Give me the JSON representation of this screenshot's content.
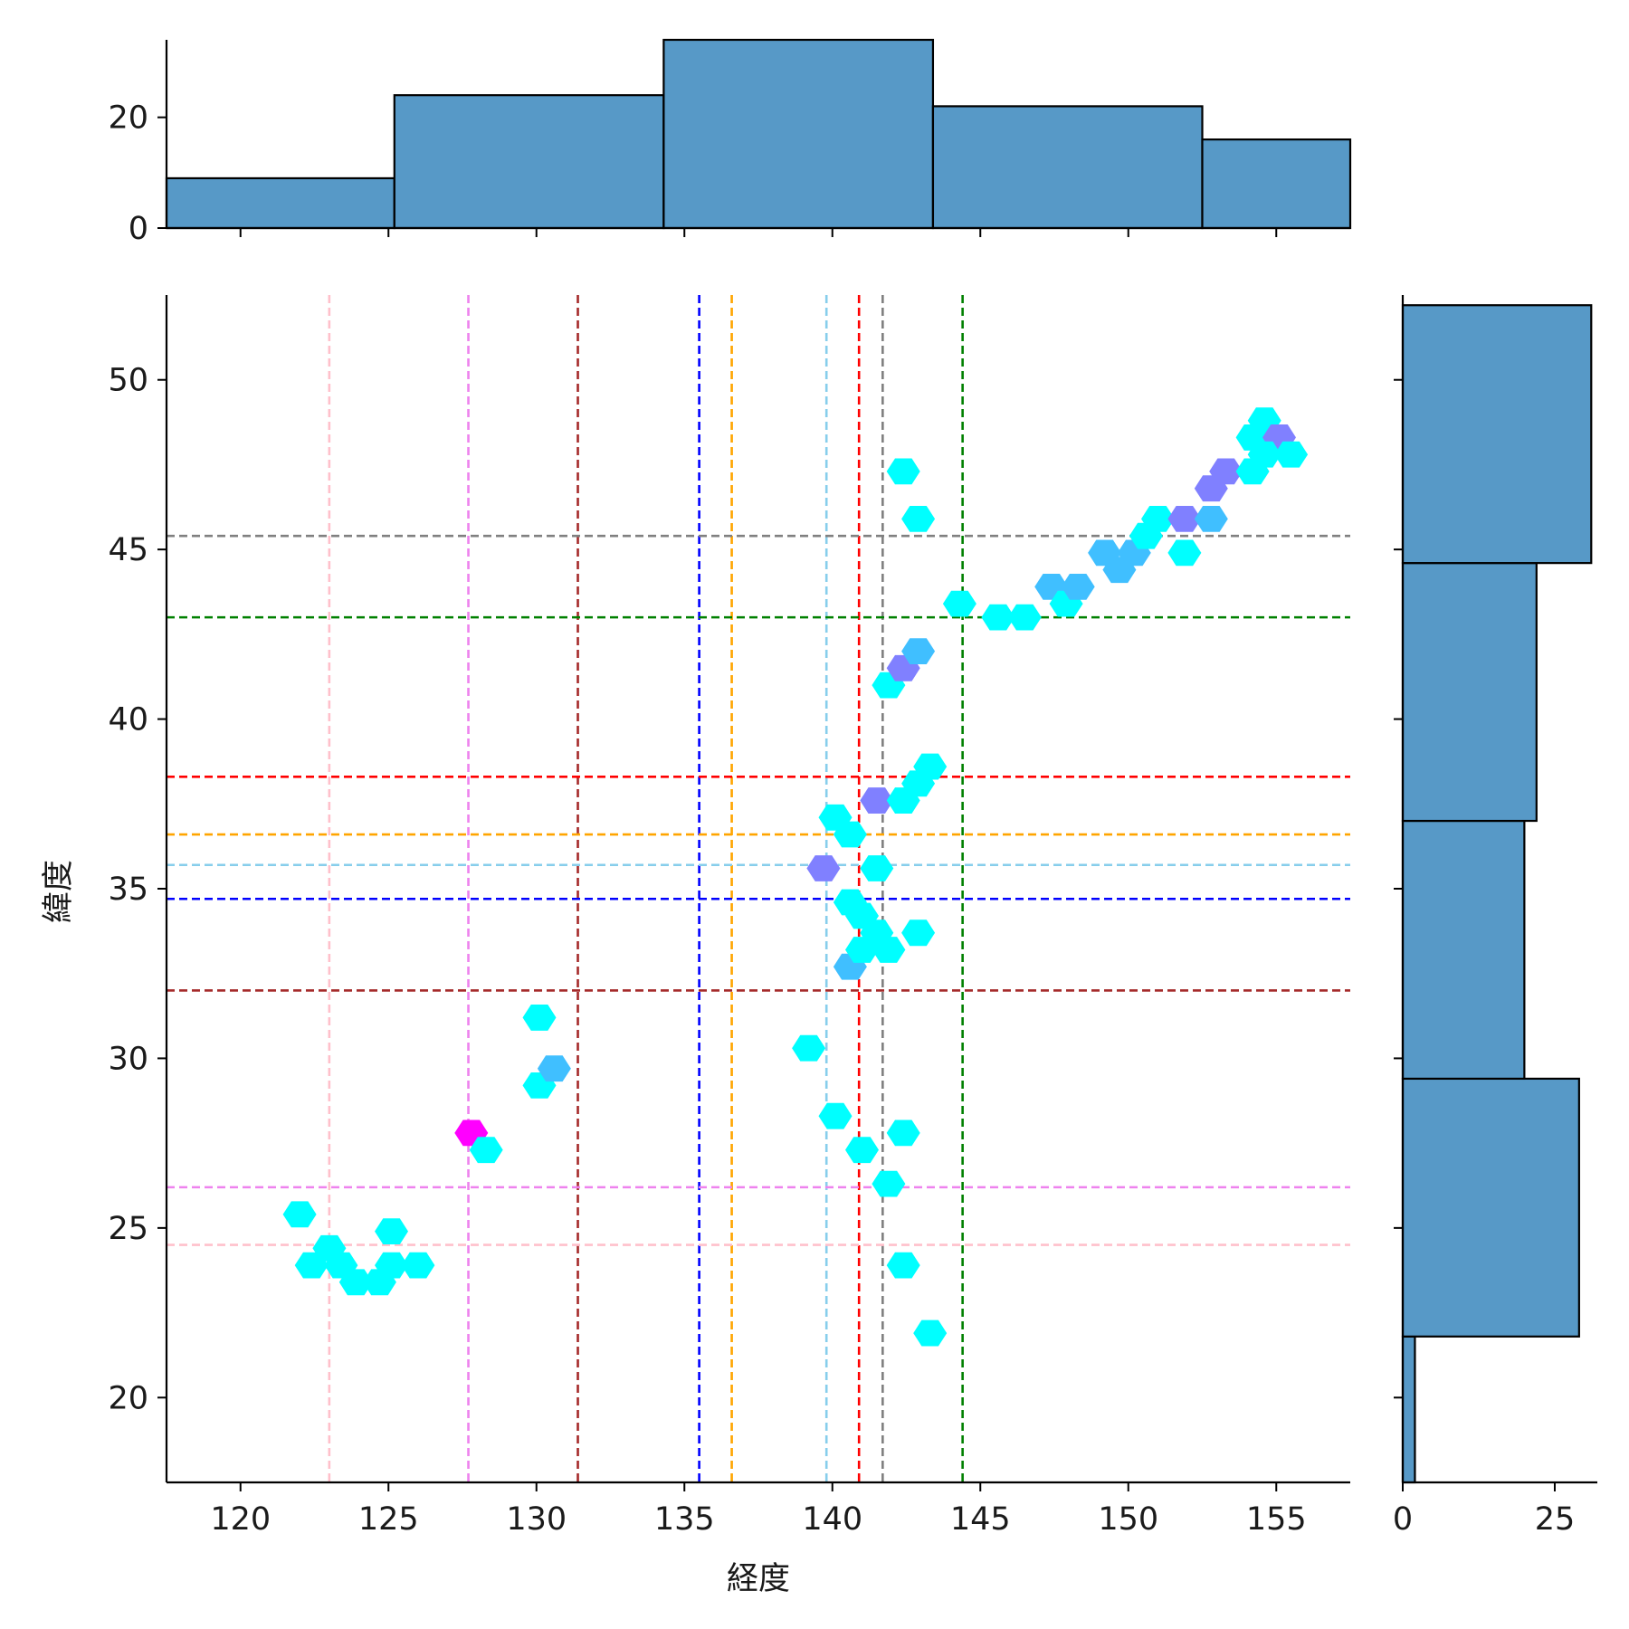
{
  "chart_data": {
    "type": "hexbin-joint",
    "xlabel": "経度",
    "ylabel": "緯度",
    "xlim": [
      117.5,
      157.5
    ],
    "ylim": [
      17.5,
      52.5
    ],
    "x_ticks": [
      "120",
      "125",
      "130",
      "135",
      "140",
      "145",
      "150",
      "155"
    ],
    "x_tick_values": [
      120,
      125,
      130,
      135,
      140,
      145,
      150,
      155
    ],
    "y_ticks": [
      "20",
      "25",
      "30",
      "35",
      "40",
      "45",
      "50"
    ],
    "y_tick_values": [
      20,
      25,
      30,
      35,
      40,
      45,
      50
    ],
    "hexbins": [
      {
        "x": 122.0,
        "y": 25.4,
        "count": 1
      },
      {
        "x": 122.4,
        "y": 23.9,
        "count": 1
      },
      {
        "x": 123.0,
        "y": 24.4,
        "count": 1
      },
      {
        "x": 123.4,
        "y": 23.9,
        "count": 1
      },
      {
        "x": 123.9,
        "y": 23.4,
        "count": 1
      },
      {
        "x": 124.7,
        "y": 23.4,
        "count": 1
      },
      {
        "x": 125.1,
        "y": 23.9,
        "count": 1
      },
      {
        "x": 125.1,
        "y": 24.9,
        "count": 1
      },
      {
        "x": 126.0,
        "y": 23.9,
        "count": 1
      },
      {
        "x": 127.8,
        "y": 27.8,
        "count": 5
      },
      {
        "x": 128.3,
        "y": 27.3,
        "count": 1
      },
      {
        "x": 130.1,
        "y": 31.2,
        "count": 1
      },
      {
        "x": 130.1,
        "y": 29.2,
        "count": 1
      },
      {
        "x": 130.6,
        "y": 29.7,
        "count": 2
      },
      {
        "x": 139.2,
        "y": 30.3,
        "count": 1
      },
      {
        "x": 139.7,
        "y": 35.6,
        "count": 3
      },
      {
        "x": 140.1,
        "y": 37.1,
        "count": 1
      },
      {
        "x": 140.1,
        "y": 28.3,
        "count": 1
      },
      {
        "x": 140.6,
        "y": 36.6,
        "count": 1
      },
      {
        "x": 140.6,
        "y": 34.6,
        "count": 1
      },
      {
        "x": 140.6,
        "y": 32.7,
        "count": 2
      },
      {
        "x": 141.0,
        "y": 34.2,
        "count": 1
      },
      {
        "x": 141.0,
        "y": 33.2,
        "count": 1
      },
      {
        "x": 141.0,
        "y": 27.3,
        "count": 1
      },
      {
        "x": 141.5,
        "y": 37.6,
        "count": 3
      },
      {
        "x": 141.5,
        "y": 35.6,
        "count": 1
      },
      {
        "x": 141.5,
        "y": 33.7,
        "count": 1
      },
      {
        "x": 141.9,
        "y": 41.0,
        "count": 1
      },
      {
        "x": 141.9,
        "y": 33.2,
        "count": 1
      },
      {
        "x": 141.9,
        "y": 26.3,
        "count": 1
      },
      {
        "x": 142.4,
        "y": 47.3,
        "count": 1
      },
      {
        "x": 142.4,
        "y": 41.5,
        "count": 3
      },
      {
        "x": 142.4,
        "y": 37.6,
        "count": 1
      },
      {
        "x": 142.4,
        "y": 27.8,
        "count": 1
      },
      {
        "x": 142.4,
        "y": 23.9,
        "count": 1
      },
      {
        "x": 142.9,
        "y": 45.9,
        "count": 1
      },
      {
        "x": 142.9,
        "y": 42.0,
        "count": 2
      },
      {
        "x": 142.9,
        "y": 38.1,
        "count": 1
      },
      {
        "x": 142.9,
        "y": 33.7,
        "count": 1
      },
      {
        "x": 143.3,
        "y": 38.6,
        "count": 1
      },
      {
        "x": 143.3,
        "y": 21.9,
        "count": 1
      },
      {
        "x": 144.3,
        "y": 43.4,
        "count": 1
      },
      {
        "x": 145.6,
        "y": 43.0,
        "count": 1
      },
      {
        "x": 146.5,
        "y": 43.0,
        "count": 1
      },
      {
        "x": 147.4,
        "y": 43.9,
        "count": 2
      },
      {
        "x": 147.9,
        "y": 43.4,
        "count": 1
      },
      {
        "x": 148.3,
        "y": 43.9,
        "count": 2
      },
      {
        "x": 149.2,
        "y": 44.9,
        "count": 2
      },
      {
        "x": 149.7,
        "y": 44.4,
        "count": 2
      },
      {
        "x": 150.2,
        "y": 44.9,
        "count": 2
      },
      {
        "x": 150.6,
        "y": 45.4,
        "count": 1
      },
      {
        "x": 151.0,
        "y": 45.9,
        "count": 1
      },
      {
        "x": 151.9,
        "y": 45.9,
        "count": 3
      },
      {
        "x": 151.9,
        "y": 44.9,
        "count": 1
      },
      {
        "x": 152.8,
        "y": 46.8,
        "count": 3
      },
      {
        "x": 152.8,
        "y": 45.9,
        "count": 2
      },
      {
        "x": 153.3,
        "y": 47.3,
        "count": 3
      },
      {
        "x": 154.2,
        "y": 47.3,
        "count": 1
      },
      {
        "x": 154.2,
        "y": 48.3,
        "count": 1
      },
      {
        "x": 154.6,
        "y": 48.8,
        "count": 1
      },
      {
        "x": 155.1,
        "y": 48.3,
        "count": 3
      },
      {
        "x": 154.6,
        "y": 47.8,
        "count": 1
      },
      {
        "x": 155.5,
        "y": 47.8,
        "count": 1
      }
    ],
    "vlines": [
      {
        "x": 123.0,
        "color": "#ffc0cb"
      },
      {
        "x": 127.7,
        "color": "#ee82ee"
      },
      {
        "x": 131.4,
        "color": "#a52a2a"
      },
      {
        "x": 135.5,
        "color": "#0000ff"
      },
      {
        "x": 136.6,
        "color": "#ffa500"
      },
      {
        "x": 139.8,
        "color": "#87ceeb"
      },
      {
        "x": 140.9,
        "color": "#ff0000"
      },
      {
        "x": 141.7,
        "color": "#808080"
      },
      {
        "x": 144.4,
        "color": "#008000"
      }
    ],
    "hlines": [
      {
        "y": 45.4,
        "color": "#808080"
      },
      {
        "y": 43.0,
        "color": "#008000"
      },
      {
        "y": 38.3,
        "color": "#ff0000"
      },
      {
        "y": 36.6,
        "color": "#ffa500"
      },
      {
        "y": 35.7,
        "color": "#87ceeb"
      },
      {
        "y": 34.7,
        "color": "#0000ff"
      },
      {
        "y": 32.0,
        "color": "#a52a2a"
      },
      {
        "y": 26.2,
        "color": "#ee82ee"
      },
      {
        "y": 24.5,
        "color": "#ffc0cb"
      }
    ],
    "marginal_x": {
      "bin_edges": [
        117.5,
        125.2,
        134.3,
        143.4,
        152.5,
        157.5
      ],
      "counts": [
        9,
        24,
        34,
        22,
        16
      ],
      "ylim": [
        0,
        34
      ],
      "y_ticks": [
        "0",
        "20"
      ],
      "y_tick_values": [
        0,
        20
      ]
    },
    "marginal_y": {
      "bin_edges": [
        17.5,
        21.8,
        29.4,
        37.0,
        44.6,
        52.2
      ],
      "counts": [
        2,
        29,
        20,
        22,
        31
      ],
      "xlim": [
        0,
        32
      ],
      "x_ticks": [
        "0",
        "25"
      ],
      "x_tick_values": [
        0,
        25
      ]
    },
    "colors": {
      "hist_fill": "#5799c7",
      "hist_edge": "#000000",
      "hex_low": "#00ffff",
      "hex_high": "#ff00ff"
    }
  }
}
